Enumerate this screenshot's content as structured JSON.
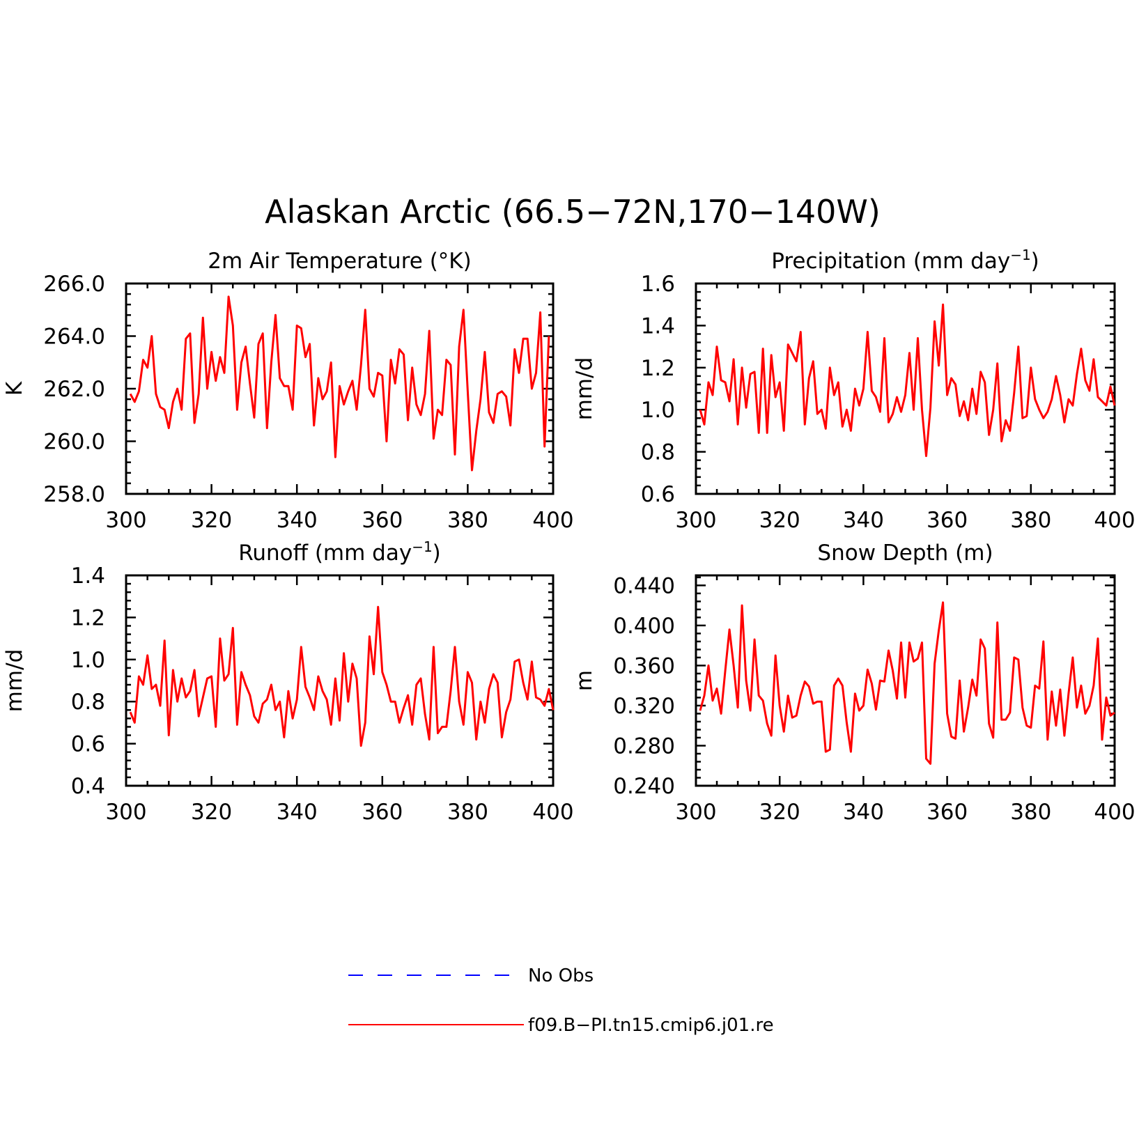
{
  "figure": {
    "title": "Alaskan Arctic (66.5−72N,170−140W)"
  },
  "legend": [
    {
      "label": "No Obs",
      "color": "#0000ff",
      "dash": true
    },
    {
      "label": "f09.B−PI.tn15.cmip6.j01.re",
      "color": "#ff0000",
      "dash": false
    }
  ],
  "chart_data": [
    {
      "type": "line",
      "title": "2m Air Temperature (°K)",
      "title_sup": "",
      "title_end": "",
      "ylabel": "K",
      "xlim": [
        300,
        400
      ],
      "ylim": [
        258,
        266
      ],
      "xticks": [
        300,
        320,
        340,
        360,
        380,
        400
      ],
      "yticks": [
        "258.0",
        "260.0",
        "262.0",
        "264.0",
        "266.0"
      ],
      "series": [
        {
          "color": "#ff0000",
          "x_start": 301,
          "x_step": 1,
          "values": [
            261.8,
            261.5,
            261.9,
            263.1,
            262.8,
            264.0,
            261.8,
            261.3,
            261.2,
            260.5,
            261.5,
            262.0,
            261.2,
            263.9,
            264.1,
            260.7,
            261.8,
            264.7,
            262.0,
            263.4,
            262.3,
            263.2,
            262.6,
            265.5,
            264.4,
            261.2,
            263.0,
            263.6,
            262.2,
            260.9,
            263.7,
            264.1,
            260.5,
            263.0,
            264.8,
            262.4,
            262.1,
            262.1,
            261.2,
            264.4,
            264.3,
            263.2,
            263.7,
            260.6,
            262.4,
            261.6,
            261.9,
            263.0,
            259.4,
            262.1,
            261.4,
            261.9,
            262.3,
            261.2,
            262.9,
            265.0,
            262.0,
            261.7,
            262.6,
            262.5,
            260.0,
            263.1,
            262.2,
            263.5,
            263.3,
            260.8,
            262.8,
            261.4,
            261.0,
            261.8,
            264.2,
            260.1,
            261.2,
            261.0,
            263.1,
            262.9,
            259.5,
            263.6,
            265.0,
            261.9,
            258.9,
            260.4,
            261.6,
            263.4,
            261.1,
            260.7,
            261.8,
            261.9,
            261.7,
            260.6,
            263.5,
            262.6,
            263.9,
            263.9,
            262.0,
            262.6,
            264.9,
            259.8,
            264.0
          ]
        }
      ]
    },
    {
      "type": "line",
      "title": "Precipitation (mm day",
      "title_sup": "−1",
      "title_end": ")",
      "ylabel": "mm/d",
      "xlim": [
        300,
        400
      ],
      "ylim": [
        0.6,
        1.6
      ],
      "xticks": [
        300,
        320,
        340,
        360,
        380,
        400
      ],
      "yticks": [
        "0.6",
        "0.8",
        "1.0",
        "1.2",
        "1.4",
        "1.6"
      ],
      "series": [
        {
          "color": "#ff0000",
          "x_start": 301,
          "x_step": 1,
          "values": [
            1.0,
            0.93,
            1.13,
            1.07,
            1.3,
            1.14,
            1.13,
            1.04,
            1.24,
            0.93,
            1.2,
            1.01,
            1.17,
            1.18,
            0.89,
            1.29,
            0.89,
            1.26,
            1.06,
            1.13,
            0.9,
            1.31,
            1.27,
            1.23,
            1.37,
            0.93,
            1.15,
            1.23,
            0.98,
            1.0,
            0.91,
            1.2,
            1.07,
            1.13,
            0.92,
            1.0,
            0.9,
            1.1,
            1.02,
            1.1,
            1.37,
            1.09,
            1.06,
            0.99,
            1.34,
            0.94,
            0.98,
            1.06,
            0.99,
            1.07,
            1.27,
            1.0,
            1.34,
            1.0,
            0.78,
            1.01,
            1.42,
            1.21,
            1.5,
            1.07,
            1.15,
            1.12,
            0.97,
            1.04,
            0.95,
            1.1,
            0.98,
            1.18,
            1.13,
            0.88,
            1.0,
            1.22,
            0.85,
            0.95,
            0.9,
            1.08,
            1.3,
            0.96,
            0.97,
            1.2,
            1.05,
            1.0,
            0.96,
            0.99,
            1.05,
            1.16,
            1.07,
            0.94,
            1.05,
            1.02,
            1.17,
            1.29,
            1.14,
            1.09,
            1.24,
            1.06,
            1.04,
            1.02,
            1.11,
            1.02
          ]
        }
      ]
    },
    {
      "type": "line",
      "title": "Runoff (mm day",
      "title_sup": "−1",
      "title_end": ")",
      "ylabel": "mm/d",
      "xlim": [
        300,
        400
      ],
      "ylim": [
        0.4,
        1.4
      ],
      "xticks": [
        300,
        320,
        340,
        360,
        380,
        400
      ],
      "yticks": [
        "0.4",
        "0.6",
        "0.8",
        "1.0",
        "1.2",
        "1.4"
      ],
      "series": [
        {
          "color": "#ff0000",
          "x_start": 301,
          "x_step": 1,
          "values": [
            0.75,
            0.7,
            0.92,
            0.88,
            1.02,
            0.86,
            0.88,
            0.78,
            1.09,
            0.64,
            0.95,
            0.8,
            0.91,
            0.82,
            0.85,
            0.95,
            0.73,
            0.82,
            0.91,
            0.92,
            0.68,
            1.1,
            0.9,
            0.93,
            1.15,
            0.69,
            0.94,
            0.88,
            0.83,
            0.73,
            0.7,
            0.79,
            0.81,
            0.88,
            0.76,
            0.8,
            0.63,
            0.85,
            0.72,
            0.81,
            1.06,
            0.87,
            0.82,
            0.76,
            0.92,
            0.85,
            0.81,
            0.69,
            0.91,
            0.71,
            1.03,
            0.8,
            0.98,
            0.91,
            0.59,
            0.7,
            1.11,
            0.93,
            1.25,
            0.94,
            0.88,
            0.8,
            0.8,
            0.7,
            0.77,
            0.83,
            0.69,
            0.88,
            0.91,
            0.74,
            0.62,
            1.06,
            0.65,
            0.68,
            0.68,
            0.85,
            1.06,
            0.8,
            0.69,
            0.94,
            0.89,
            0.62,
            0.8,
            0.7,
            0.86,
            0.93,
            0.89,
            0.63,
            0.75,
            0.81,
            0.99,
            1.0,
            0.89,
            0.81,
            0.99,
            0.82,
            0.81,
            0.78,
            0.86,
            0.76
          ]
        }
      ]
    },
    {
      "type": "line",
      "title": "Snow Depth (m)",
      "title_sup": "",
      "title_end": "",
      "ylabel": "m",
      "xlim": [
        300,
        400
      ],
      "ylim": [
        0.24,
        0.45
      ],
      "xticks": [
        300,
        320,
        340,
        360,
        380,
        400
      ],
      "yticks": [
        "0.240",
        "0.280",
        "0.320",
        "0.360",
        "0.400",
        "0.440"
      ],
      "series": [
        {
          "color": "#ff0000",
          "x_start": 301,
          "x_step": 1,
          "values": [
            0.315,
            0.33,
            0.36,
            0.325,
            0.337,
            0.312,
            0.355,
            0.396,
            0.36,
            0.318,
            0.42,
            0.345,
            0.315,
            0.386,
            0.33,
            0.325,
            0.302,
            0.29,
            0.37,
            0.32,
            0.294,
            0.33,
            0.308,
            0.31,
            0.33,
            0.344,
            0.339,
            0.322,
            0.324,
            0.324,
            0.274,
            0.276,
            0.34,
            0.347,
            0.34,
            0.303,
            0.274,
            0.332,
            0.315,
            0.32,
            0.356,
            0.342,
            0.316,
            0.345,
            0.344,
            0.375,
            0.355,
            0.327,
            0.383,
            0.328,
            0.383,
            0.364,
            0.367,
            0.383,
            0.267,
            0.262,
            0.362,
            0.395,
            0.423,
            0.312,
            0.289,
            0.287,
            0.345,
            0.294,
            0.318,
            0.346,
            0.33,
            0.386,
            0.377,
            0.302,
            0.288,
            0.403,
            0.306,
            0.306,
            0.313,
            0.368,
            0.366,
            0.318,
            0.3,
            0.298,
            0.34,
            0.337,
            0.384,
            0.286,
            0.334,
            0.3,
            0.336,
            0.29,
            0.332,
            0.368,
            0.318,
            0.34,
            0.312,
            0.32,
            0.34,
            0.387,
            0.286,
            0.328,
            0.31,
            0.313
          ]
        }
      ]
    }
  ]
}
